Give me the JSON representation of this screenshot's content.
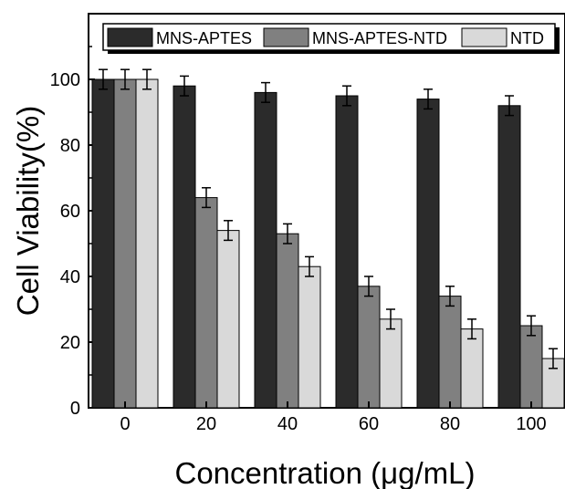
{
  "chart_data": {
    "type": "bar",
    "xlabel": "Concentration (μg/mL)",
    "ylabel": "Cell Viability(%)",
    "categories": [
      "0",
      "20",
      "40",
      "60",
      "80",
      "100"
    ],
    "ylim": [
      0,
      120
    ],
    "yticks": [
      0,
      20,
      40,
      60,
      80,
      100
    ],
    "grid": false,
    "legend_position": "top",
    "series": [
      {
        "name": "MNS-APTES",
        "color": "#2b2b2b",
        "values": [
          100,
          98,
          96,
          95,
          94,
          92
        ],
        "errors": [
          3,
          3,
          3,
          3,
          3,
          3
        ]
      },
      {
        "name": "MNS-APTES-NTD",
        "color": "#808080",
        "values": [
          100,
          64,
          53,
          37,
          34,
          25
        ],
        "errors": [
          3,
          3,
          3,
          3,
          3,
          3
        ]
      },
      {
        "name": "NTD",
        "color": "#d9d9d9",
        "values": [
          100,
          54,
          43,
          27,
          24,
          15
        ],
        "errors": [
          3,
          3,
          3,
          3,
          3,
          3
        ]
      }
    ]
  }
}
